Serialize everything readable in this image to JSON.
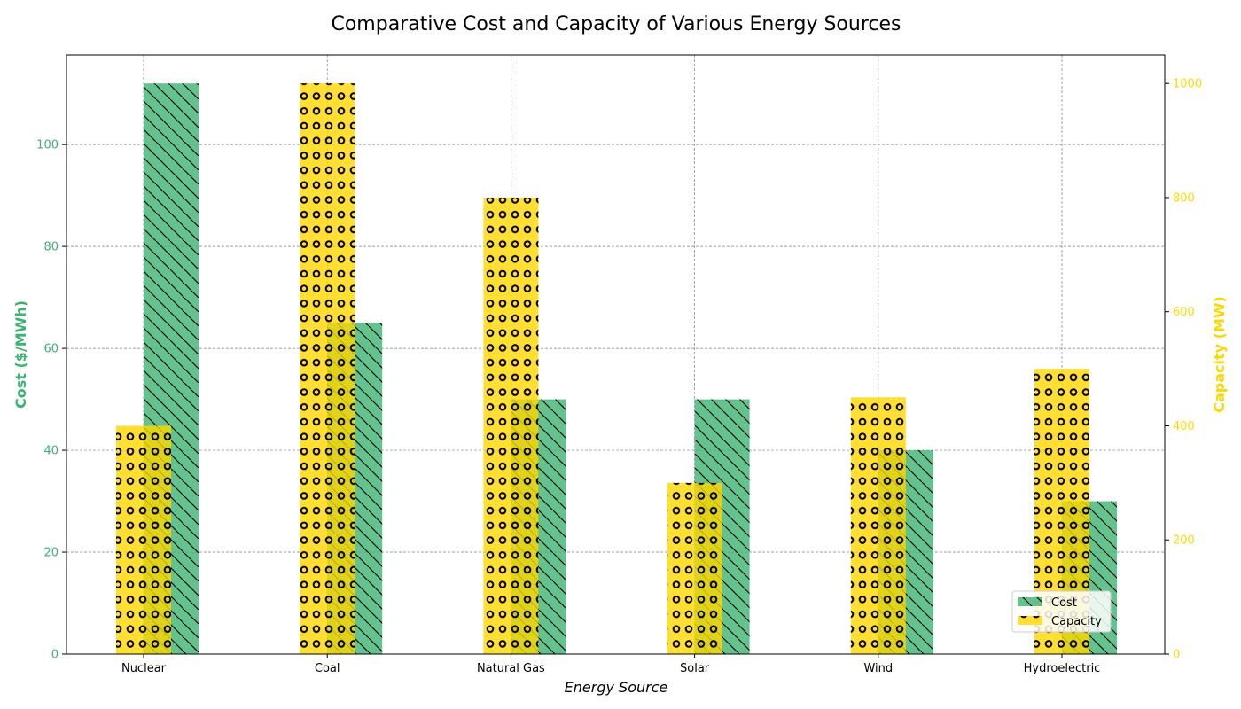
{
  "chart_data": {
    "type": "bar",
    "title": "Comparative Cost and Capacity of Various Energy Sources",
    "xlabel": "Energy Source",
    "categories": [
      "Nuclear",
      "Coal",
      "Natural Gas",
      "Solar",
      "Wind",
      "Hydroelectric"
    ],
    "series": [
      {
        "name": "Cost",
        "axis": "left",
        "color": "#3cb371",
        "hatch": "diagonal",
        "values": [
          112,
          65,
          50,
          50,
          40,
          30
        ]
      },
      {
        "name": "Capacity",
        "axis": "right",
        "color": "#ffd700",
        "hatch": "circles",
        "values": [
          400,
          1000,
          800,
          300,
          450,
          500
        ]
      }
    ],
    "y_left": {
      "label": "Cost ($/MWh)",
      "color": "#3cb371",
      "range": [
        0,
        117.6
      ],
      "ticks": [
        "0",
        "20",
        "40",
        "60",
        "80",
        "100"
      ]
    },
    "y_right": {
      "label": "Capacity (MW)",
      "color": "#ffd700",
      "range": [
        0,
        1050
      ],
      "ticks": [
        "0",
        "200",
        "400",
        "600",
        "800",
        "1000"
      ]
    },
    "grid": true,
    "legend": "lower-right"
  }
}
